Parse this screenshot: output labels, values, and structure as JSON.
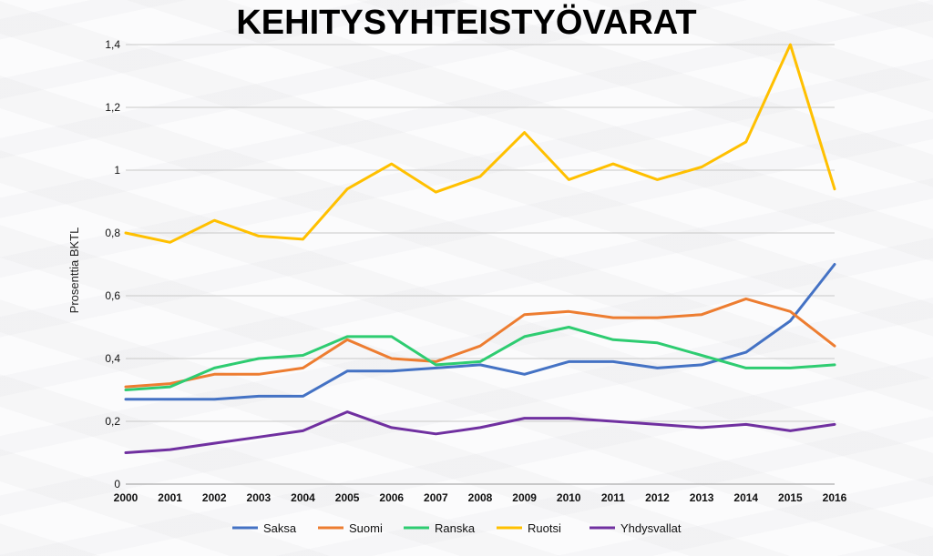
{
  "chart_data": {
    "type": "line",
    "title": "KEHITYSYHTEISTYÖVARAT",
    "xlabel": "",
    "ylabel": "Prosenttia BKTL",
    "x": [
      "2000",
      "2001",
      "2002",
      "2003",
      "2004",
      "2005",
      "2006",
      "2007",
      "2008",
      "2009",
      "2010",
      "2011",
      "2012",
      "2013",
      "2014",
      "2015",
      "2016"
    ],
    "ylim": [
      0,
      1.4
    ],
    "yticks": [
      0,
      0.2,
      0.4,
      0.6,
      0.8,
      1,
      1.2,
      1.4
    ],
    "ytick_labels": [
      "0",
      "0,2",
      "0,4",
      "0,6",
      "0,8",
      "1",
      "1,2",
      "1,4"
    ],
    "grid": true,
    "legend_position": "bottom",
    "series": [
      {
        "name": "Saksa",
        "color": "#4472c4",
        "values": [
          0.27,
          0.27,
          0.27,
          0.28,
          0.28,
          0.36,
          0.36,
          0.37,
          0.38,
          0.35,
          0.39,
          0.39,
          0.37,
          0.38,
          0.42,
          0.52,
          0.7
        ]
      },
      {
        "name": "Suomi",
        "color": "#ed7d31",
        "values": [
          0.31,
          0.32,
          0.35,
          0.35,
          0.37,
          0.46,
          0.4,
          0.39,
          0.44,
          0.54,
          0.55,
          0.53,
          0.53,
          0.54,
          0.59,
          0.55,
          0.44
        ]
      },
      {
        "name": "Ranska",
        "color": "#2ecc71",
        "values": [
          0.3,
          0.31,
          0.37,
          0.4,
          0.41,
          0.47,
          0.47,
          0.38,
          0.39,
          0.47,
          0.5,
          0.46,
          0.45,
          0.41,
          0.37,
          0.37,
          0.38
        ]
      },
      {
        "name": "Ruotsi",
        "color": "#ffc000",
        "values": [
          0.8,
          0.77,
          0.84,
          0.79,
          0.78,
          0.94,
          1.02,
          0.93,
          0.98,
          1.12,
          0.97,
          1.02,
          0.97,
          1.01,
          1.09,
          1.4,
          0.94
        ]
      },
      {
        "name": "Yhdysvallat",
        "color": "#7030a0",
        "values": [
          0.1,
          0.11,
          0.13,
          0.15,
          0.17,
          0.23,
          0.18,
          0.16,
          0.18,
          0.21,
          0.21,
          0.2,
          0.19,
          0.18,
          0.19,
          0.17,
          0.19
        ]
      }
    ]
  }
}
